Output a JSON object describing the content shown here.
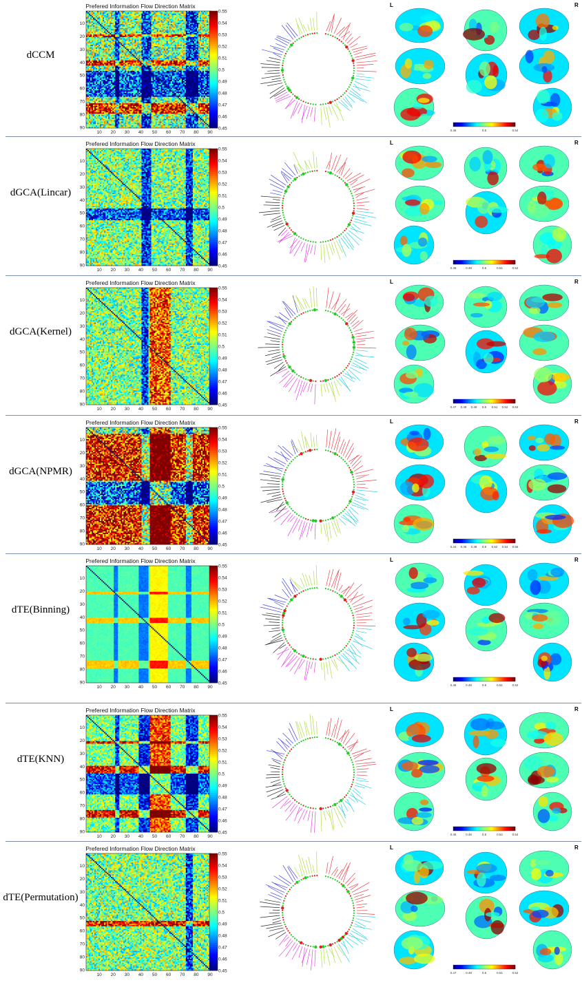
{
  "figure": {
    "rows": [
      {
        "method": "dCCM",
        "matrix_title": "Prefered Information Flow Direction Matrix",
        "brain_colorbar_ticks": [
          "0.46",
          "0.5",
          "0.54"
        ],
        "profile": "ccm"
      },
      {
        "method": "dGCA(Lincar)",
        "matrix_title": "Prefered Information Flow Direction Matrix",
        "brain_colorbar_ticks": [
          "0.48",
          "0.49",
          "0.5",
          "0.51",
          "0.52"
        ],
        "profile": "lin"
      },
      {
        "method": "dGCA(Kernel)",
        "matrix_title": "Prefered Information Flow Direction Matrix",
        "brain_colorbar_ticks": [
          "0.47",
          "0.48",
          "0.49",
          "0.5",
          "0.51",
          "0.52",
          "0.53"
        ],
        "profile": "ker"
      },
      {
        "method": "dGCA(NPMR)",
        "matrix_title": "Prefered Information Flow Direction Matrix",
        "brain_colorbar_ticks": [
          "0.44",
          "0.46",
          "0.48",
          "0.5",
          "0.52",
          "0.54",
          "0.56"
        ],
        "profile": "npmr"
      },
      {
        "method": "dTE(Binning)",
        "matrix_title": "Prefered Information Flow Direction Matrix",
        "brain_colorbar_ticks": [
          "0.48",
          "0.49",
          "0.5",
          "0.51",
          "0.52"
        ],
        "profile": "bin"
      },
      {
        "method": "dTE(KNN)",
        "matrix_title": "Prefered Information Flow Direction Matrix",
        "brain_colorbar_ticks": [
          "0.46",
          "0.48",
          "0.5",
          "0.52",
          "0.54"
        ],
        "profile": "knn"
      },
      {
        "method": "dTE(Permutation)",
        "matrix_title": "Prefered Information Flow Direction Matrix",
        "brain_colorbar_ticks": [
          "0.47",
          "0.49",
          "0.5",
          "0.51",
          "0.52"
        ],
        "profile": "perm"
      }
    ],
    "hemisphere_left": "L",
    "hemisphere_right": "R"
  },
  "chart_data": {
    "type": "heatmap",
    "matrix_size": 90,
    "axis_ticks": [
      "10",
      "20",
      "30",
      "40",
      "50",
      "60",
      "70",
      "80",
      "90"
    ],
    "axis_tick_values": [
      10,
      20,
      30,
      40,
      50,
      60,
      70,
      80,
      90
    ],
    "colorbar_ticks": [
      "0.55",
      "0.54",
      "0.53",
      "0.52",
      "0.51",
      "0.5",
      "0.49",
      "0.48",
      "0.47",
      "0.46",
      "0.45"
    ],
    "colorbar_range": [
      0.45,
      0.55
    ],
    "colormap": "jet",
    "circle_group_colors": [
      "#e8202a",
      "#00c8e0",
      "#a0d820",
      "#e020e0",
      "#000000",
      "#2020e0",
      "#30d030"
    ]
  }
}
